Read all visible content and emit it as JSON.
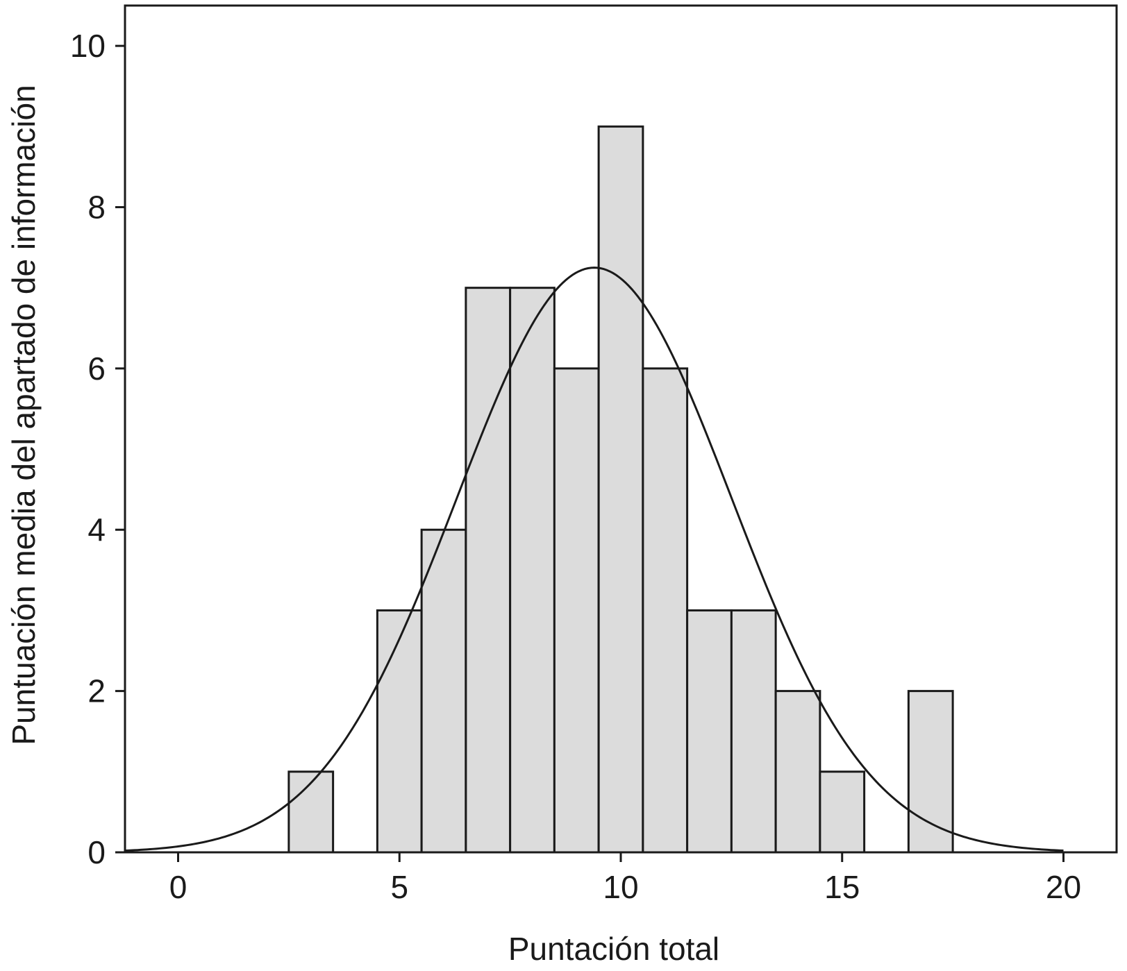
{
  "chart_data": {
    "type": "bar",
    "subtype": "histogram",
    "xlabel": "Puntación total",
    "ylabel": "Puntuación media del apartado de información",
    "xlim": [
      -1.2,
      21.2
    ],
    "ylim": [
      0,
      10.5
    ],
    "xticks": [
      0,
      5,
      10,
      15,
      20
    ],
    "yticks": [
      0,
      2,
      4,
      6,
      8,
      10
    ],
    "bins": [
      {
        "center": 3,
        "value": 1
      },
      {
        "center": 5,
        "value": 3
      },
      {
        "center": 6,
        "value": 4
      },
      {
        "center": 7,
        "value": 7
      },
      {
        "center": 8,
        "value": 7
      },
      {
        "center": 9,
        "value": 6
      },
      {
        "center": 10,
        "value": 9
      },
      {
        "center": 11,
        "value": 6
      },
      {
        "center": 12,
        "value": 3
      },
      {
        "center": 13,
        "value": 3
      },
      {
        "center": 14,
        "value": 2
      },
      {
        "center": 15,
        "value": 1
      },
      {
        "center": 17,
        "value": 2
      }
    ],
    "bin_width": 1,
    "normal_curve": {
      "mean": 9.4,
      "sd": 3.1,
      "peak": 7.25,
      "x_range": [
        -1.2,
        20
      ]
    },
    "grid": false,
    "bar_color": "#dcdcdc",
    "edge_color": "#1a1a1a"
  }
}
